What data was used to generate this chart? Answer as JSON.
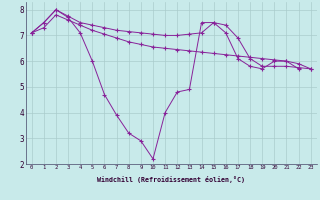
{
  "xlabel": "Windchill (Refroidissement éolien,°C)",
  "background_color": "#c8eaea",
  "grid_color": "#aacccc",
  "line_color": "#882299",
  "xlim": [
    -0.5,
    23.5
  ],
  "ylim": [
    2.0,
    8.3
  ],
  "yticks": [
    2,
    3,
    4,
    5,
    6,
    7,
    8
  ],
  "xticks": [
    0,
    1,
    2,
    3,
    4,
    5,
    6,
    7,
    8,
    9,
    10,
    11,
    12,
    13,
    14,
    15,
    16,
    17,
    18,
    19,
    20,
    21,
    22,
    23
  ],
  "series": [
    {
      "x": [
        0,
        1,
        2,
        3,
        4,
        5,
        6,
        7,
        8,
        9,
        10,
        11,
        12,
        13,
        14,
        15,
        16,
        17,
        18,
        19,
        20,
        21,
        22
      ],
      "y": [
        7.1,
        7.5,
        8.0,
        7.7,
        7.1,
        6.0,
        4.7,
        3.9,
        3.2,
        2.9,
        2.2,
        4.0,
        4.8,
        4.9,
        7.5,
        7.5,
        7.1,
        6.1,
        5.8,
        5.7,
        6.0,
        6.0,
        5.7
      ]
    },
    {
      "x": [
        0,
        1,
        2,
        3,
        4,
        5,
        6,
        7,
        8,
        9,
        10,
        11,
        12,
        13,
        14,
        15,
        16,
        17,
        18,
        19,
        20,
        21,
        22,
        23
      ],
      "y": [
        7.1,
        7.3,
        7.8,
        7.6,
        7.4,
        7.2,
        7.05,
        6.9,
        6.75,
        6.65,
        6.55,
        6.5,
        6.45,
        6.4,
        6.35,
        6.3,
        6.25,
        6.2,
        6.15,
        6.1,
        6.05,
        6.0,
        5.9,
        5.7
      ]
    },
    {
      "x": [
        0,
        1,
        2,
        3,
        4,
        5,
        6,
        7,
        8,
        9,
        10,
        11,
        12,
        13,
        14,
        15,
        16,
        17,
        18,
        19,
        20,
        21,
        22,
        23
      ],
      "y": [
        7.1,
        7.5,
        8.0,
        7.75,
        7.5,
        7.4,
        7.3,
        7.2,
        7.15,
        7.1,
        7.05,
        7.0,
        7.0,
        7.05,
        7.1,
        7.5,
        7.4,
        6.9,
        6.1,
        5.8,
        5.8,
        5.8,
        5.75,
        5.7
      ]
    }
  ]
}
